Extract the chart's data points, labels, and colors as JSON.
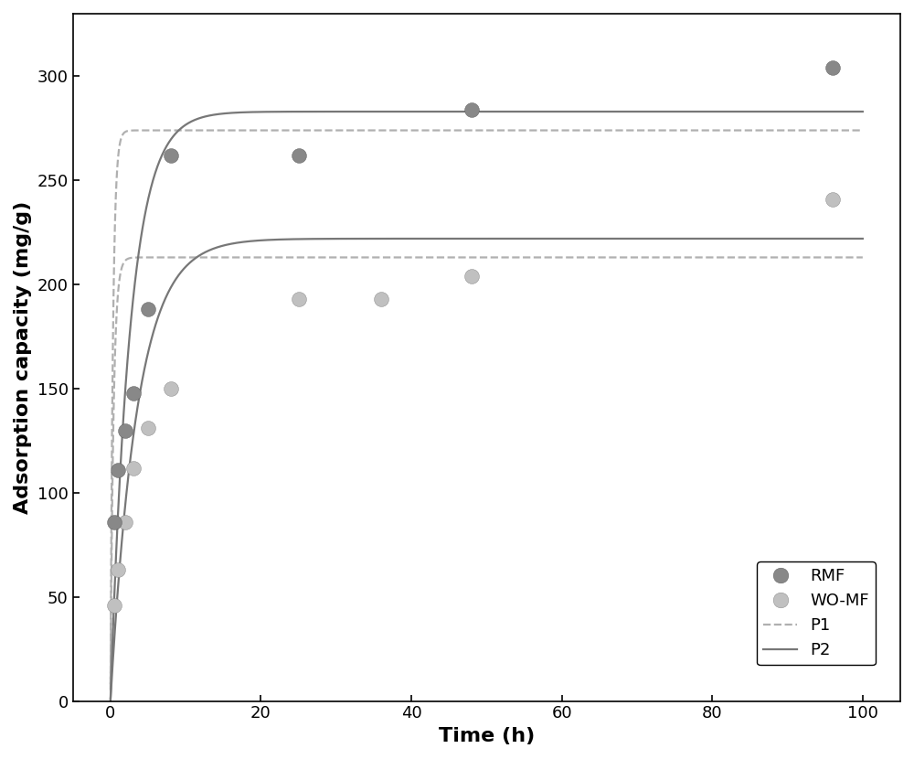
{
  "title": "",
  "xlabel": "Time (h)",
  "ylabel": "Adsorption capacity (mg/g)",
  "xlim": [
    -5,
    105
  ],
  "ylim": [
    0,
    330
  ],
  "xticks": [
    0,
    20,
    40,
    60,
    80,
    100
  ],
  "yticks": [
    0,
    50,
    100,
    150,
    200,
    250,
    300
  ],
  "rmf_x": [
    0.5,
    1,
    2,
    3,
    5,
    8,
    25,
    48,
    96
  ],
  "rmf_y": [
    86,
    111,
    130,
    148,
    188,
    262,
    262,
    284,
    304
  ],
  "womf_x": [
    0.5,
    1,
    2,
    3,
    5,
    8,
    25,
    36,
    48,
    96
  ],
  "womf_y": [
    46,
    63,
    86,
    112,
    131,
    150,
    193,
    193,
    204,
    241
  ],
  "rmf_color": "#888888",
  "womf_color": "#c0c0c0",
  "p1_color": "#b0b0b0",
  "p2_color": "#777777",
  "qe_rmf_p2": 283,
  "k_rmf_p2": 0.38,
  "qe_womf_p2": 222,
  "k_womf_p2": 0.28,
  "qe_rmf_p1": 274,
  "k_rmf_p1": 3.0,
  "qe_womf_p1": 213,
  "k_womf_p1": 2.5,
  "marker_size": 130,
  "figsize": [
    10.0,
    8.3
  ],
  "dpi": 100
}
